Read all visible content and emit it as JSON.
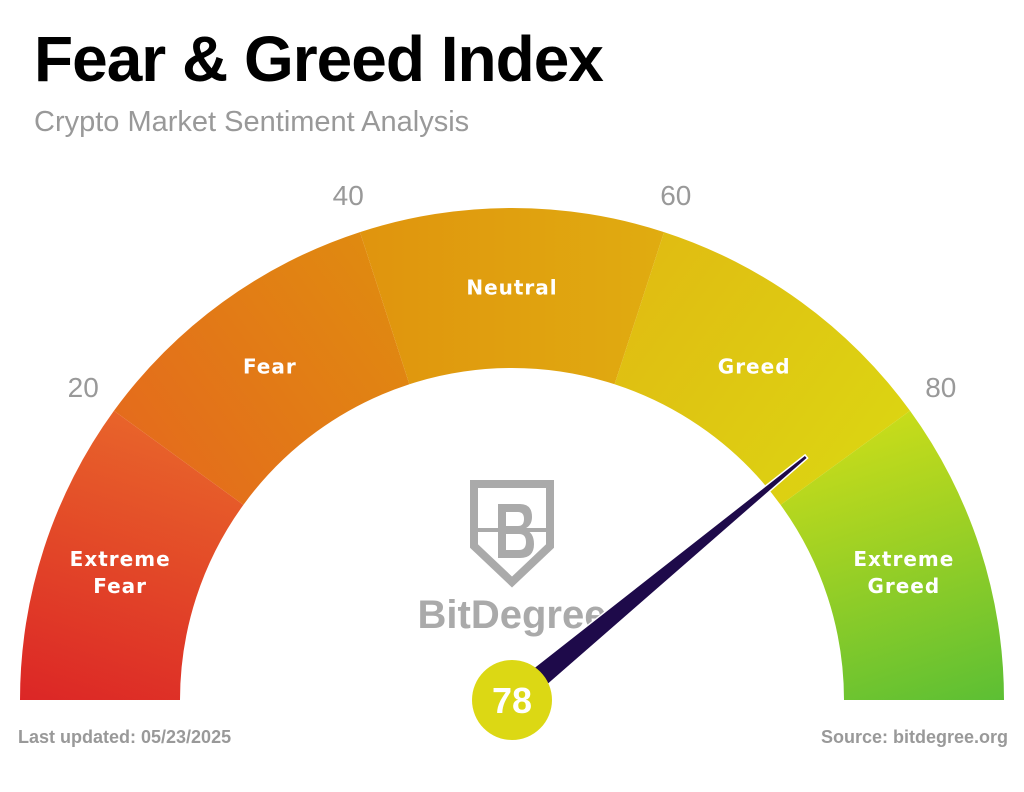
{
  "chart_data": {
    "type": "gauge",
    "title": "Fear & Greed Index",
    "subtitle": "Crypto Market Sentiment Analysis",
    "range": [
      0,
      100
    ],
    "ticks": [
      20,
      40,
      60,
      80
    ],
    "segments": [
      {
        "label": "Extreme Fear",
        "from": 0,
        "to": 20,
        "colors": [
          "#dc2626",
          "#e8642a"
        ]
      },
      {
        "label": "Fear",
        "from": 20,
        "to": 40,
        "colors": [
          "#e46c1c",
          "#e08a10"
        ]
      },
      {
        "label": "Neutral",
        "from": 40,
        "to": 60,
        "colors": [
          "#e0940e",
          "#e0ac10"
        ]
      },
      {
        "label": "Greed",
        "from": 60,
        "to": 80,
        "colors": [
          "#e0bc12",
          "#dcd412"
        ]
      },
      {
        "label": "Extreme Greed",
        "from": 80,
        "to": 100,
        "colors": [
          "#c8dc1a",
          "#5cbf34"
        ]
      }
    ],
    "value": 78,
    "value_color": "#dcd814",
    "needle_color": "#1e0a4a",
    "watermark": "BitDegree",
    "last_updated": "Last updated: 05/23/2025",
    "source": "Source: bitdegree.org"
  }
}
